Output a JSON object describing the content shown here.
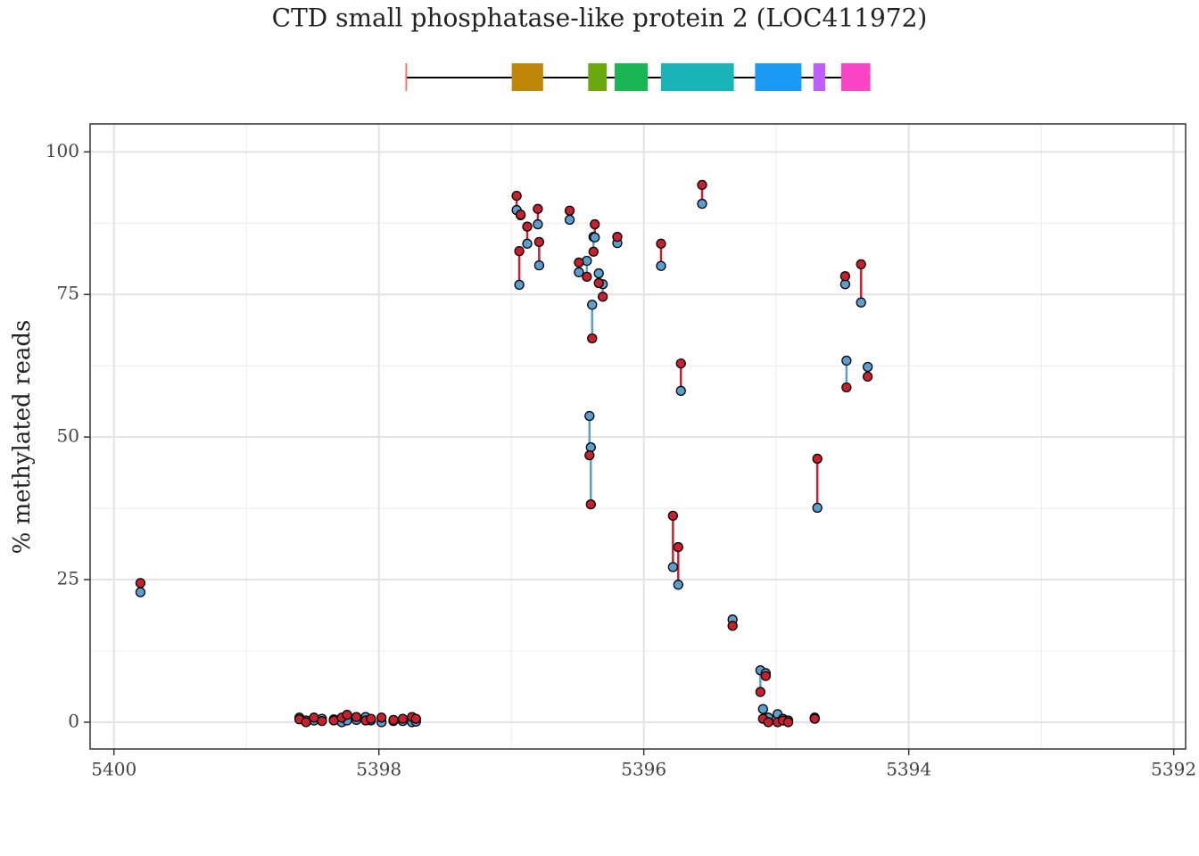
{
  "chart_data": {
    "type": "paired-scatter",
    "title": "CTD small phosphatase-like protein 2 (LOC411972)",
    "y_label": "% methylated reads",
    "gene_model": {
      "start": 5397.8,
      "end": 5394.29,
      "line_color": "#000000",
      "exons": [
        {
          "start": 5397.8,
          "end": 5397.79,
          "color": "#f8766d"
        },
        {
          "start": 5396.997,
          "end": 5396.76,
          "color": "#c0860a"
        },
        {
          "start": 5396.42,
          "end": 5396.28,
          "color": "#6aa80d"
        },
        {
          "start": 5396.22,
          "end": 5395.97,
          "color": "#1ab653"
        },
        {
          "start": 5395.87,
          "end": 5395.32,
          "color": "#19b4b8"
        },
        {
          "start": 5395.16,
          "end": 5394.81,
          "color": "#1a9af5"
        },
        {
          "start": 5394.72,
          "end": 5394.63,
          "color": "#c060fa"
        },
        {
          "start": 5394.51,
          "end": 5394.29,
          "color": "#fc44c6"
        }
      ]
    },
    "x": [
      5399.8,
      5398.6,
      5398.55,
      5398.49,
      5398.43,
      5398.34,
      5398.28,
      5398.24,
      5398.17,
      5398.1,
      5398.06,
      5397.98,
      5397.89,
      5397.82,
      5397.75,
      5397.72,
      5396.96,
      5396.94,
      5396.93,
      5396.88,
      5396.8,
      5396.79,
      5396.56,
      5396.49,
      5396.43,
      5396.39,
      5396.41,
      5396.4,
      5396.38,
      5396.37,
      5396.34,
      5396.31,
      5396.2,
      5395.87,
      5395.78,
      5395.74,
      5395.72,
      5395.56,
      5395.33,
      5395.12,
      5395.1,
      5395.08,
      5395.06,
      5394.99,
      5394.95,
      5394.91,
      5394.71,
      5394.69,
      5394.48,
      5394.47,
      5394.36,
      5394.31
    ],
    "series": [
      {
        "color": "#c8202f",
        "values": [
          24.4,
          0.5,
          0,
          0.8,
          0.2,
          0.3,
          0.8,
          1.3,
          0.9,
          0.3,
          0.6,
          0.8,
          0.4,
          0.6,
          0.9,
          0.6,
          92.3,
          82.6,
          89.0,
          86.9,
          90.0,
          84.2,
          89.7,
          80.6,
          78.1,
          67.3,
          46.8,
          38.2,
          82.5,
          87.3,
          77.0,
          74.6,
          85.1,
          83.9,
          36.2,
          30.7,
          62.9,
          94.2,
          16.9,
          5.3,
          0.6,
          8.1,
          0,
          0,
          0.3,
          0,
          0.6,
          46.2,
          78.2,
          58.7,
          80.3,
          60.6
        ]
      },
      {
        "color": "#5b9ed0",
        "values": [
          22.8,
          0.8,
          0.3,
          0.3,
          0.6,
          0.5,
          0,
          0.3,
          0.4,
          0.9,
          0.3,
          0,
          0.2,
          0.2,
          0,
          0.1,
          89.8,
          76.7,
          88.9,
          83.9,
          87.3,
          80.1,
          88.1,
          78.9,
          80.9,
          73.2,
          53.7,
          48.2,
          85.1,
          85.0,
          78.7,
          76.8,
          84.0,
          80.0,
          27.2,
          24.1,
          58.1,
          90.9,
          18.0,
          9.1,
          2.3,
          8.6,
          0.8,
          1.4,
          0.6,
          0.3,
          0.8,
          37.6,
          76.8,
          63.4,
          73.6,
          62.3
        ]
      }
    ],
    "xlim": [
      5400.18,
      5391.91
    ],
    "ylim": [
      -4.7,
      104.9
    ],
    "xticks": [
      5400,
      5398,
      5396,
      5394,
      5392
    ],
    "yticks": [
      0,
      25,
      50,
      75,
      100
    ],
    "grid": true
  }
}
